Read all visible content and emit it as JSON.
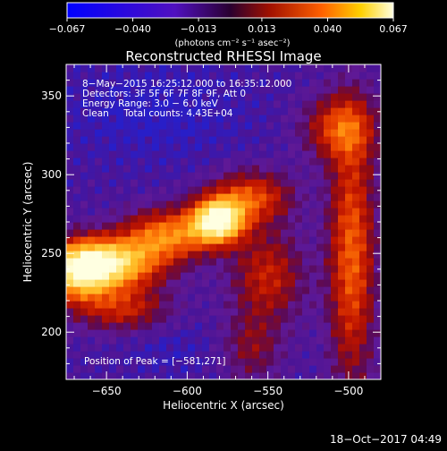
{
  "chart_data": {
    "type": "heatmap",
    "title": "Reconstructed RHESSI Image",
    "xlabel": "Heliocentric X (arcsec)",
    "ylabel": "Heliocentric Y (arcsec)",
    "xlim": [
      -675,
      -480
    ],
    "ylim": [
      170,
      370
    ],
    "x_ticks": [
      "−650",
      "−600",
      "−550",
      "−500"
    ],
    "x_tick_values": [
      -650,
      -600,
      -550,
      -500
    ],
    "y_ticks": [
      "200",
      "250",
      "300",
      "350"
    ],
    "y_tick_values": [
      200,
      250,
      300,
      350
    ],
    "colorbar": {
      "range": [
        -0.067,
        0.067
      ],
      "tick_labels": [
        "−0.067",
        "−0.040",
        "−0.013",
        "0.013",
        "0.040",
        "0.067"
      ],
      "tick_values": [
        -0.067,
        -0.04,
        -0.013,
        0.013,
        0.04,
        0.067
      ],
      "units_label": "(photons cm⁻² s⁻¹ asec⁻²)"
    },
    "annotations": {
      "time_range": "8−May−2015 16:25:12.000 to 16:35:12.000",
      "detectors": "Detectors: 3F 5F 6F 7F 8F 9F, Att 0",
      "energy": "Energy Range: 3.0 − 6.0 keV",
      "method_counts": "Clean     Total counts: 4.43E+04",
      "peak": "Position of Peak = [−581,271]"
    },
    "peak": {
      "x": -581,
      "y": 271
    }
  },
  "footer_timestamp": "18−Oct−2017 04:49"
}
